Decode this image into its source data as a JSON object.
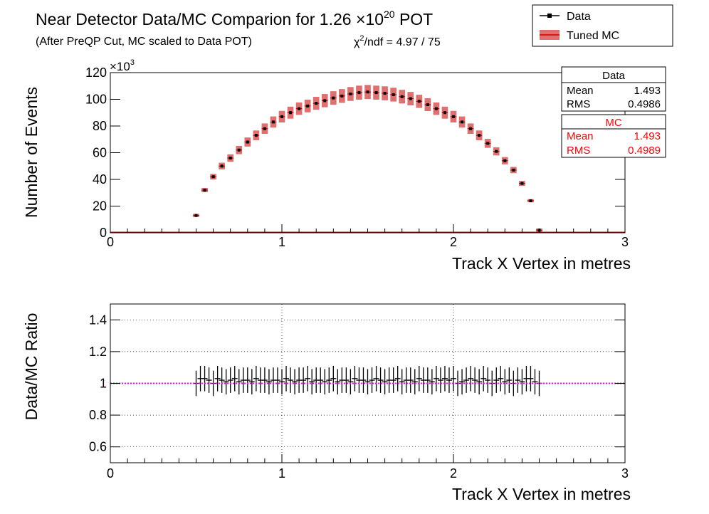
{
  "header": {
    "title_main": "Near Detector Data/MC Comparion for 1.26 ",
    "title_times": "×10",
    "title_exp": "20",
    "title_end": " POT",
    "subtitle": "(After PreQP Cut, MC scaled to Data POT)",
    "chi2_chi": "χ",
    "chi2_sup": "2",
    "chi2_rest": "/ndf = 4.97 / 75"
  },
  "legend": {
    "data_label": "Data",
    "mc_label": "Tuned MC"
  },
  "stats": {
    "data": {
      "title": "Data",
      "mean_label": "Mean",
      "mean": "1.493",
      "rms_label": "RMS",
      "rms": "0.4986"
    },
    "mc": {
      "title": "MC",
      "mean_label": "Mean",
      "mean": "1.493",
      "rms_label": "RMS",
      "rms": "0.4989"
    }
  },
  "colors": {
    "data": "#000000",
    "mc_band": "#e07070",
    "mc_line": "#cc0000",
    "ratio_line": "#ff00ff",
    "stats_mc_text": "#ff0000"
  },
  "chart_data": [
    {
      "type": "scatter",
      "xlabel": "Track X Vertex in metres",
      "ylabel": "Number of Events",
      "y_exponent_label": "×10",
      "y_exponent": "3",
      "xlim": [
        0,
        3
      ],
      "ylim": [
        0,
        120
      ],
      "xticks": [
        0,
        1,
        2,
        3
      ],
      "yticks": [
        0,
        20,
        40,
        60,
        80,
        100,
        120
      ],
      "grid": false,
      "legend_position": "top-right",
      "series": [
        {
          "name": "Data",
          "x": [
            0.5,
            0.55,
            0.6,
            0.65,
            0.7,
            0.75,
            0.8,
            0.85,
            0.9,
            0.95,
            1.0,
            1.05,
            1.1,
            1.15,
            1.2,
            1.25,
            1.3,
            1.35,
            1.4,
            1.45,
            1.5,
            1.55,
            1.6,
            1.65,
            1.7,
            1.75,
            1.8,
            1.85,
            1.9,
            1.95,
            2.0,
            2.05,
            2.1,
            2.15,
            2.2,
            2.25,
            2.3,
            2.35,
            2.4,
            2.45,
            2.5
          ],
          "y": [
            13,
            32,
            42,
            50,
            56,
            62,
            68,
            73,
            78,
            83,
            87,
            90,
            93,
            95,
            97,
            99,
            101,
            102.5,
            104,
            105,
            105.5,
            105,
            104.5,
            103.5,
            102,
            100.5,
            98.5,
            96,
            93,
            90,
            87,
            83,
            78,
            73,
            67,
            61,
            54,
            47,
            37,
            24,
            2
          ]
        },
        {
          "name": "Tuned MC",
          "x": [
            0.5,
            0.55,
            0.6,
            0.65,
            0.7,
            0.75,
            0.8,
            0.85,
            0.9,
            0.95,
            1.0,
            1.05,
            1.1,
            1.15,
            1.2,
            1.25,
            1.3,
            1.35,
            1.4,
            1.45,
            1.5,
            1.55,
            1.6,
            1.65,
            1.7,
            1.75,
            1.8,
            1.85,
            1.9,
            1.95,
            2.0,
            2.05,
            2.1,
            2.15,
            2.2,
            2.25,
            2.3,
            2.35,
            2.4,
            2.45,
            2.5
          ],
          "y": [
            13,
            32,
            42,
            50,
            56,
            62,
            68,
            73,
            78,
            83,
            87,
            90,
            93,
            95,
            97,
            99,
            101,
            102.5,
            104,
            105,
            105.5,
            105,
            104.5,
            103.5,
            102,
            100.5,
            98.5,
            96,
            93,
            90,
            87,
            83,
            78,
            73,
            67,
            61,
            54,
            47,
            37,
            24,
            2
          ],
          "band_frac": 0.05
        }
      ]
    },
    {
      "type": "scatter",
      "xlabel": "Track X Vertex in metres",
      "ylabel": "Data/MC Ratio",
      "xlim": [
        0,
        3
      ],
      "ylim": [
        0.5,
        1.5
      ],
      "xticks": [
        0,
        1,
        2,
        3
      ],
      "yticks": [
        0.6,
        0.8,
        1,
        1.2,
        1.4
      ],
      "ytick_labels": [
        "0.6",
        "0.8",
        "1",
        "1.2",
        "1.4"
      ],
      "grid": true,
      "reference_line": 1,
      "series": [
        {
          "name": "Data/MC",
          "x": [
            0.5,
            0.525,
            0.55,
            0.575,
            0.6,
            0.625,
            0.65,
            0.675,
            0.7,
            0.725,
            0.75,
            0.775,
            0.8,
            0.825,
            0.85,
            0.875,
            0.9,
            0.925,
            0.95,
            0.975,
            1.0,
            1.025,
            1.05,
            1.075,
            1.1,
            1.125,
            1.15,
            1.175,
            1.2,
            1.225,
            1.25,
            1.275,
            1.3,
            1.325,
            1.35,
            1.375,
            1.4,
            1.425,
            1.45,
            1.475,
            1.5,
            1.525,
            1.55,
            1.575,
            1.6,
            1.625,
            1.65,
            1.675,
            1.7,
            1.725,
            1.75,
            1.775,
            1.8,
            1.825,
            1.85,
            1.875,
            1.9,
            1.925,
            1.95,
            1.975,
            2.0,
            2.025,
            2.05,
            2.075,
            2.1,
            2.125,
            2.15,
            2.175,
            2.2,
            2.225,
            2.25,
            2.275,
            2.3,
            2.325,
            2.35,
            2.375,
            2.4,
            2.425,
            2.45,
            2.475,
            2.5
          ],
          "y": [
            1.0,
            1.03,
            1.03,
            1.02,
            1.0,
            1.03,
            1.02,
            1.01,
            1.02,
            1.03,
            1.01,
            1.02,
            1.02,
            1.01,
            1.03,
            1.02,
            1.02,
            1.01,
            1.02,
            1.02,
            1.01,
            1.03,
            1.02,
            1.01,
            1.02,
            1.02,
            1.03,
            1.01,
            1.02,
            1.02,
            1.01,
            1.02,
            1.03,
            1.01,
            1.02,
            1.02,
            1.01,
            1.03,
            1.02,
            1.02,
            1.01,
            1.02,
            1.03,
            1.02,
            1.01,
            1.02,
            1.02,
            1.03,
            1.01,
            1.02,
            1.02,
            1.01,
            1.03,
            1.02,
            1.02,
            1.01,
            1.03,
            1.02,
            1.03,
            1.02,
            1.03,
            1.0,
            1.01,
            1.02,
            1.03,
            1.02,
            1.01,
            1.03,
            1.02,
            1.0,
            1.02,
            1.03,
            1.01,
            1.02,
            1.0,
            1.02,
            1.01,
            1.03,
            1.03,
            1.01,
            1.0
          ],
          "error": 0.08
        }
      ]
    }
  ]
}
